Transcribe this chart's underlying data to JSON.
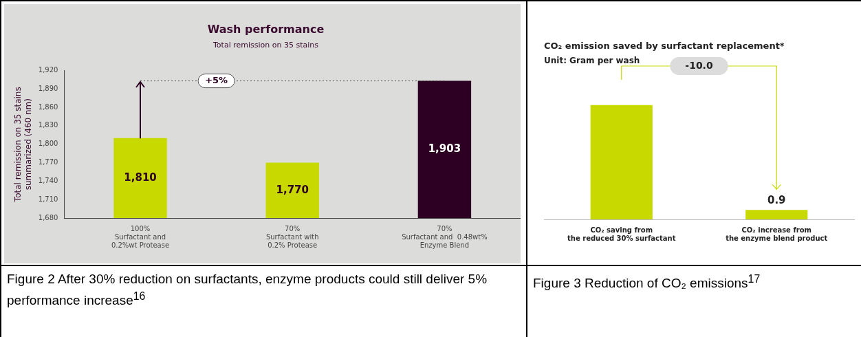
{
  "chart_data": [
    {
      "type": "bar",
      "title": "Wash performance",
      "subtitle": "Total remission on 35 stains",
      "ylabel": "Total remission on 35 stains\nsummarized (460 nm)",
      "categories": [
        "100%\nSurfactant and\n0.2%wt Protease",
        "70%\nSurfactant with\n0.2% Protease",
        "70%\nSurfactant and  0.48wt%\nEnzyme Blend"
      ],
      "values": [
        1810,
        1770,
        1903
      ],
      "colors": [
        "#c8d900",
        "#c8d900",
        "#2d0023"
      ],
      "value_labels": [
        "1,810",
        "1,770",
        "1,903"
      ],
      "ylim": [
        1680,
        1920
      ],
      "yticks": [
        {
          "value": 1680,
          "label": "1,680"
        },
        {
          "value": 1710,
          "label": "1,710"
        },
        {
          "value": 1740,
          "label": "1,740"
        },
        {
          "value": 1770,
          "label": "1,770"
        },
        {
          "value": 1800,
          "label": "1,800"
        },
        {
          "value": 1830,
          "label": "1,830"
        },
        {
          "value": 1860,
          "label": "1,860"
        },
        {
          "value": 1890,
          "label": "1,890"
        },
        {
          "value": 1920,
          "label": "1,920"
        }
      ],
      "ref_lines": [
        {
          "axis": "y",
          "value": 1903,
          "line_style": "dotted",
          "color": "#555555"
        }
      ],
      "grid": false,
      "annotations": [
        {
          "text": "+5%",
          "y": 1903
        },
        "Figure 2 After 30% reduction on surfactants, enzyme products could still deliver 5% performance increase$^{16}$"
      ]
    },
    {
      "type": "bar",
      "title": "CO₂ emission saved by surfactant replacement*",
      "subtitle": "Unit: Gram per wash",
      "tick_labels": "x",
      "categories": [
        "CO₂ saving from\nthe reduced 30% surfactant",
        "CO₂ increase from\nthe enzyme blend product"
      ],
      "values": [
        10.9,
        0.9
      ],
      "color": "#c8d900",
      "value_labels": [
        null,
        "0.9"
      ],
      "grid": false,
      "annotations": [
        "-10.0",
        "Figure 3 Reduction of CO₂ emissions$^{17}$"
      ]
    }
  ]
}
